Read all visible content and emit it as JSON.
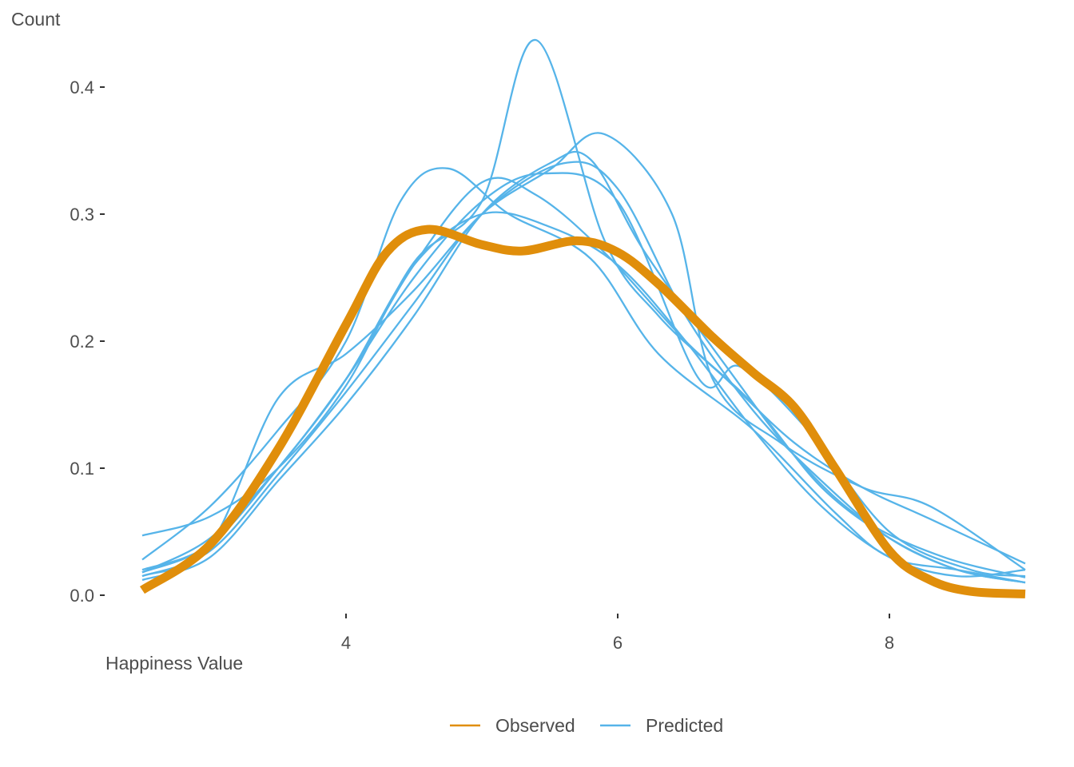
{
  "chart_data": {
    "type": "line",
    "title": "",
    "xlabel": "Happiness Value",
    "ylabel": "Count",
    "xlim": [
      2.45,
      9.0
    ],
    "ylim": [
      0.0,
      0.44
    ],
    "x_ticks": [
      4,
      6,
      8
    ],
    "y_ticks": [
      0.0,
      0.1,
      0.2,
      0.3,
      0.4
    ],
    "x_tick_labels": [
      "4",
      "6",
      "8"
    ],
    "y_tick_labels": [
      "0.0",
      "0.1",
      "0.2",
      "0.3",
      "0.4"
    ],
    "grid": false,
    "legend_position": "bottom",
    "legend": [
      {
        "name": "Observed",
        "color": "#E08E0B"
      },
      {
        "name": "Predicted",
        "color": "#56B4E9"
      }
    ],
    "series": [
      {
        "name": "Predicted",
        "color": "#56B4E9",
        "points": [
          [
            2.5,
            0.047
          ],
          [
            3.0,
            0.062
          ],
          [
            3.5,
            0.1
          ],
          [
            4.0,
            0.165
          ],
          [
            4.5,
            0.262
          ],
          [
            5.0,
            0.31
          ],
          [
            5.4,
            0.437
          ],
          [
            5.9,
            0.28
          ],
          [
            6.3,
            0.22
          ],
          [
            6.8,
            0.17
          ],
          [
            7.3,
            0.12
          ],
          [
            7.8,
            0.085
          ],
          [
            8.3,
            0.06
          ],
          [
            9.0,
            0.025
          ]
        ]
      },
      {
        "name": "Predicted",
        "color": "#56B4E9",
        "points": [
          [
            2.5,
            0.028
          ],
          [
            3.0,
            0.07
          ],
          [
            3.5,
            0.13
          ],
          [
            4.0,
            0.2
          ],
          [
            4.4,
            0.31
          ],
          [
            4.75,
            0.336
          ],
          [
            5.2,
            0.3
          ],
          [
            5.8,
            0.265
          ],
          [
            6.3,
            0.19
          ],
          [
            7.0,
            0.13
          ],
          [
            7.6,
            0.065
          ],
          [
            8.0,
            0.03
          ],
          [
            8.5,
            0.02
          ],
          [
            9.0,
            0.01
          ]
        ]
      },
      {
        "name": "Predicted",
        "color": "#56B4E9",
        "points": [
          [
            2.5,
            0.015
          ],
          [
            3.0,
            0.04
          ],
          [
            3.5,
            0.155
          ],
          [
            4.0,
            0.19
          ],
          [
            4.5,
            0.24
          ],
          [
            5.0,
            0.3
          ],
          [
            5.5,
            0.335
          ],
          [
            5.9,
            0.363
          ],
          [
            6.4,
            0.3
          ],
          [
            6.7,
            0.17
          ],
          [
            7.2,
            0.12
          ],
          [
            7.8,
            0.085
          ],
          [
            8.3,
            0.07
          ],
          [
            9.0,
            0.02
          ]
        ]
      },
      {
        "name": "Predicted",
        "color": "#56B4E9",
        "points": [
          [
            2.5,
            0.018
          ],
          [
            3.0,
            0.045
          ],
          [
            3.5,
            0.1
          ],
          [
            4.0,
            0.17
          ],
          [
            4.5,
            0.25
          ],
          [
            5.0,
            0.31
          ],
          [
            5.45,
            0.332
          ],
          [
            6.0,
            0.31
          ],
          [
            6.6,
            0.17
          ],
          [
            6.9,
            0.18
          ],
          [
            7.4,
            0.13
          ],
          [
            8.0,
            0.05
          ],
          [
            8.6,
            0.02
          ],
          [
            9.0,
            0.015
          ]
        ]
      },
      {
        "name": "Predicted",
        "color": "#56B4E9",
        "points": [
          [
            2.5,
            0.02
          ],
          [
            3.0,
            0.04
          ],
          [
            3.5,
            0.1
          ],
          [
            4.0,
            0.17
          ],
          [
            4.5,
            0.26
          ],
          [
            5.0,
            0.325
          ],
          [
            5.4,
            0.315
          ],
          [
            5.9,
            0.27
          ],
          [
            6.5,
            0.2
          ],
          [
            7.0,
            0.15
          ],
          [
            7.5,
            0.085
          ],
          [
            8.0,
            0.045
          ],
          [
            8.5,
            0.02
          ],
          [
            9.0,
            0.01
          ]
        ]
      },
      {
        "name": "Predicted",
        "color": "#56B4E9",
        "points": [
          [
            2.5,
            0.015
          ],
          [
            3.0,
            0.035
          ],
          [
            3.5,
            0.095
          ],
          [
            4.0,
            0.16
          ],
          [
            4.5,
            0.23
          ],
          [
            5.0,
            0.3
          ],
          [
            5.6,
            0.34
          ],
          [
            6.0,
            0.32
          ],
          [
            6.5,
            0.22
          ],
          [
            7.0,
            0.145
          ],
          [
            7.5,
            0.09
          ],
          [
            8.0,
            0.045
          ],
          [
            8.5,
            0.02
          ],
          [
            9.0,
            0.01
          ]
        ]
      },
      {
        "name": "Predicted",
        "color": "#56B4E9",
        "points": [
          [
            2.5,
            0.012
          ],
          [
            3.0,
            0.03
          ],
          [
            3.5,
            0.09
          ],
          [
            4.0,
            0.15
          ],
          [
            4.5,
            0.22
          ],
          [
            5.0,
            0.3
          ],
          [
            5.5,
            0.34
          ],
          [
            5.8,
            0.343
          ],
          [
            6.2,
            0.27
          ],
          [
            6.8,
            0.18
          ],
          [
            7.3,
            0.11
          ],
          [
            7.8,
            0.06
          ],
          [
            8.4,
            0.03
          ],
          [
            9.0,
            0.014
          ]
        ]
      },
      {
        "name": "Predicted",
        "color": "#56B4E9",
        "points": [
          [
            2.5,
            0.018
          ],
          [
            3.0,
            0.04
          ],
          [
            3.5,
            0.1
          ],
          [
            4.0,
            0.17
          ],
          [
            4.5,
            0.26
          ],
          [
            5.0,
            0.3
          ],
          [
            5.5,
            0.29
          ],
          [
            6.0,
            0.26
          ],
          [
            6.5,
            0.2
          ],
          [
            7.0,
            0.13
          ],
          [
            7.5,
            0.07
          ],
          [
            8.0,
            0.03
          ],
          [
            8.5,
            0.015
          ],
          [
            9.0,
            0.02
          ]
        ]
      }
    ],
    "observed": {
      "name": "Observed",
      "color": "#E08E0B",
      "points": [
        [
          2.5,
          0.004
        ],
        [
          3.0,
          0.04
        ],
        [
          3.5,
          0.115
        ],
        [
          4.0,
          0.213
        ],
        [
          4.3,
          0.27
        ],
        [
          4.6,
          0.288
        ],
        [
          5.0,
          0.276
        ],
        [
          5.3,
          0.271
        ],
        [
          5.7,
          0.279
        ],
        [
          6.0,
          0.27
        ],
        [
          6.3,
          0.245
        ],
        [
          6.7,
          0.203
        ],
        [
          7.0,
          0.175
        ],
        [
          7.3,
          0.148
        ],
        [
          7.6,
          0.1
        ],
        [
          8.0,
          0.035
        ],
        [
          8.3,
          0.012
        ],
        [
          8.6,
          0.003
        ],
        [
          9.0,
          0.001
        ]
      ]
    }
  }
}
